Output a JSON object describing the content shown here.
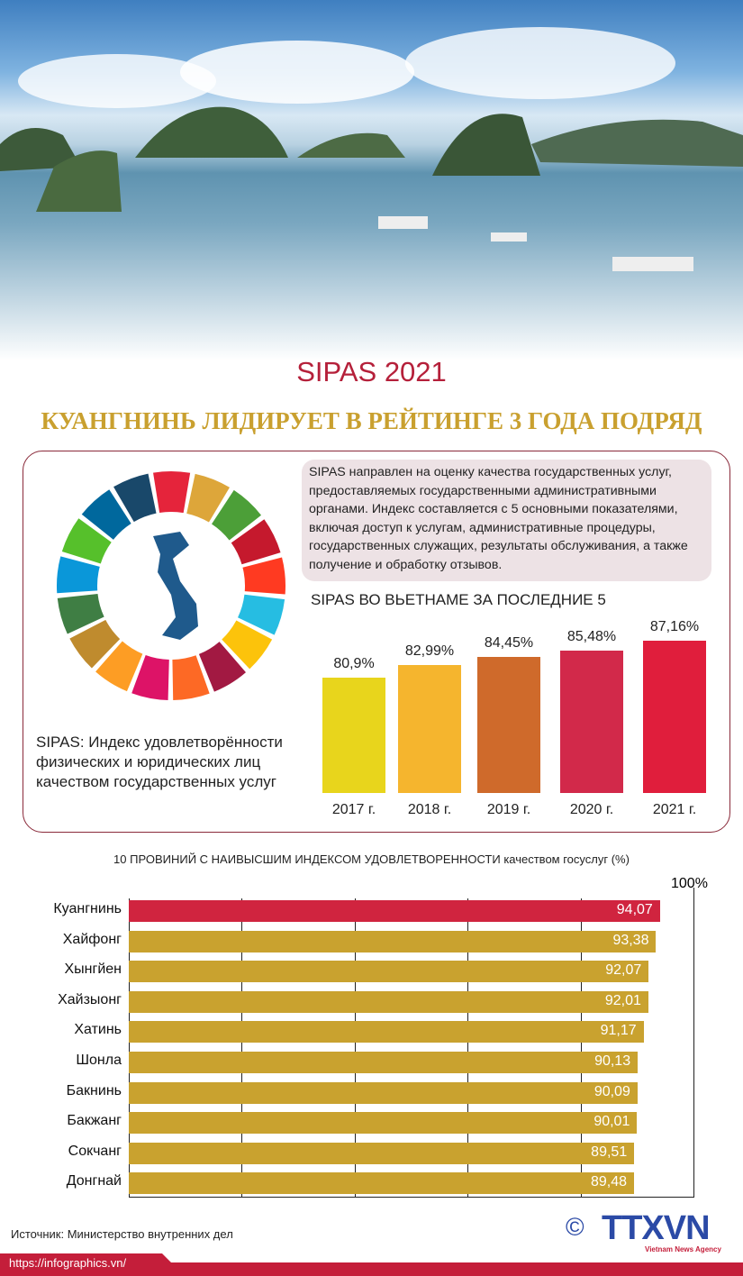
{
  "header": {
    "title": "SIPAS 2021",
    "subtitle": "КУАНГНИНЬ ЛИДИРУЕТ В РЕЙТИНГЕ 3 ГОДА ПОДРЯД"
  },
  "description": "SIPAS направлен на оценку качества государственных услуг, предоставляемых государственными административными органами. Индекс составляется с 5 основными показателями, включая доступ к услугам, административные процедуры, государственных служащих, результаты обслуживания, а также получение и обработку отзывов.",
  "caption": "SIPAS: Индекс удовлетворённости физических и юридических лиц качеством государственных услуг",
  "chart_data": [
    {
      "type": "bar",
      "title": "SIPAS ВО ВЬЕТНАМЕ ЗА ПОСЛЕДНИЕ 5",
      "categories": [
        "2017 г.",
        "2018  г.",
        "2019  г.",
        "2020  г.",
        "2021  г."
      ],
      "values": [
        80.9,
        82.99,
        84.45,
        85.48,
        87.16
      ],
      "labels": [
        "80,9%",
        "82,99%",
        "84,45%",
        "85,48%",
        "87,16%"
      ],
      "colors": [
        "#e8d51c",
        "#f5b52e",
        "#cf6a2b",
        "#d2294a",
        "#e01e3c"
      ]
    },
    {
      "type": "bar",
      "orientation": "horizontal",
      "title": "10 ПРОВИНИЙ С НАИВЫСШИМ ИНДЕКСОМ УДОВЛЕТВОРЕННОСТИ качеством госуслуг (%)",
      "categories": [
        "Куангнинь",
        "Хайфонг",
        "Хынгйен",
        "Хайзыонг",
        "Хатинь",
        "Шонла",
        "Бакнинь",
        "Бакжанг",
        "Сокчанг",
        "Донгнай"
      ],
      "values": [
        94.07,
        93.38,
        92.07,
        92.01,
        91.17,
        90.13,
        90.09,
        90.01,
        89.51,
        89.48
      ],
      "labels": [
        "94,07",
        "93,38",
        "92,07",
        "92,01",
        "91,17",
        "90,13",
        "90,09",
        "90,01",
        "89,51",
        "89,48"
      ],
      "xlim": [
        0,
        100
      ],
      "max_label": "100%",
      "grid": true,
      "colors": {
        "highlight": "#d0243f",
        "default": "#c9a22f"
      }
    }
  ],
  "footer": {
    "source": "Источник: Министерство внутренних дел",
    "url": "https://infographics.vn/",
    "logo": "TTXVN",
    "logo_sub": "Vietnam News Agency",
    "copyright": "©"
  }
}
